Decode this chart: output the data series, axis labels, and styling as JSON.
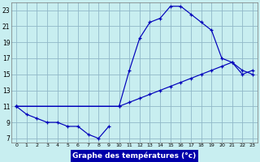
{
  "bg_color": "#c8eef0",
  "grid_color": "#90b8c8",
  "line_color": "#0000bb",
  "xlabel": "Graphe des températures (°c)",
  "xlabel_bg": "#0000aa",
  "xlabel_color": "white",
  "xlim": [
    -0.5,
    23.5
  ],
  "ylim": [
    6.5,
    24.0
  ],
  "xticks": [
    0,
    1,
    2,
    3,
    4,
    5,
    6,
    7,
    8,
    9,
    10,
    11,
    12,
    13,
    14,
    15,
    16,
    17,
    18,
    19,
    20,
    21,
    22,
    23
  ],
  "yticks": [
    7,
    9,
    11,
    13,
    15,
    17,
    19,
    21,
    23
  ],
  "series": [
    {
      "x": [
        0,
        1,
        2,
        3,
        4,
        5,
        6,
        7,
        8,
        9
      ],
      "y": [
        11,
        10,
        9.5,
        9,
        9,
        8.5,
        8.5,
        7.5,
        7,
        8.5
      ]
    },
    {
      "x": [
        0,
        10,
        11,
        12,
        13,
        14,
        15,
        16,
        17,
        18,
        19,
        20,
        21,
        22,
        23
      ],
      "y": [
        11,
        11,
        15.5,
        19.5,
        21.5,
        22,
        23.5,
        23.5,
        22.5,
        21.5,
        20.5,
        17,
        16.5,
        15.5,
        15
      ]
    },
    {
      "x": [
        0,
        10,
        11,
        12,
        13,
        14,
        15,
        16,
        17,
        18,
        19,
        20,
        21,
        22,
        23
      ],
      "y": [
        11,
        11,
        11.5,
        12,
        12.5,
        13,
        13.5,
        14,
        14.5,
        15,
        15.5,
        16,
        16.5,
        15,
        15.5
      ]
    }
  ]
}
